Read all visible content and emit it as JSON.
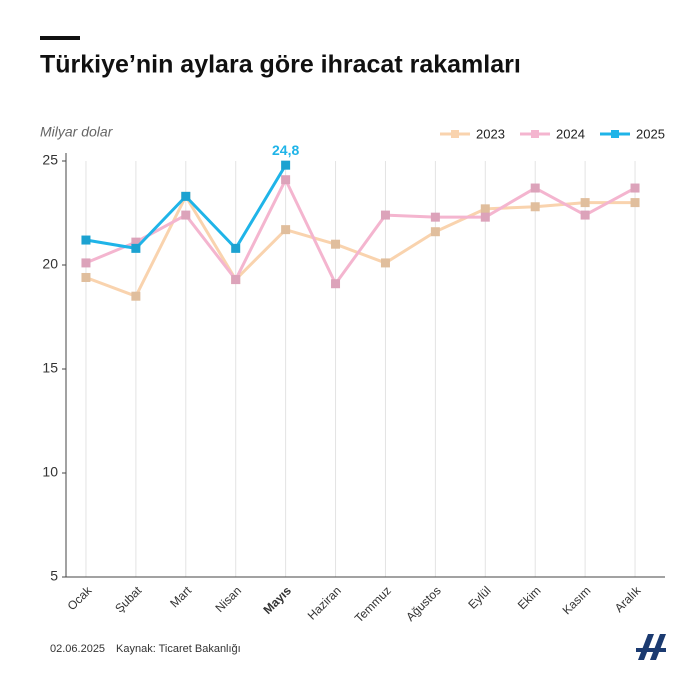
{
  "chart_data": {
    "type": "line",
    "title": "Türkiye’nin aylara göre ihracat rakamları",
    "y_label": "Milyar dolar",
    "categories": [
      "Ocak",
      "Şubat",
      "Mart",
      "Nisan",
      "Mayıs",
      "Haziran",
      "Temmuz",
      "Ağustos",
      "Eylül",
      "Ekim",
      "Kasım",
      "Aralık"
    ],
    "highlight": "Mayıs",
    "series": [
      {
        "name": "2023",
        "color": "#f9d3ae",
        "values": [
          19.4,
          18.5,
          23.3,
          19.3,
          21.7,
          21.0,
          20.1,
          21.6,
          22.7,
          22.8,
          23.0,
          23.0
        ]
      },
      {
        "name": "2024",
        "color": "#f4b5cf",
        "values": [
          20.1,
          21.1,
          22.4,
          19.3,
          24.1,
          19.1,
          22.4,
          22.3,
          22.3,
          23.7,
          22.4,
          23.7
        ]
      },
      {
        "name": "2025",
        "color": "#1fb4e8",
        "values": [
          21.2,
          20.8,
          23.3,
          20.8,
          24.8,
          null,
          null,
          null,
          null,
          null,
          null,
          null
        ],
        "value_labels": [
          null,
          null,
          null,
          null,
          "24,8",
          null,
          null,
          null,
          null,
          null,
          null,
          null
        ]
      }
    ],
    "ylim": [
      5,
      25
    ],
    "yticks": [
      5,
      10,
      15,
      20,
      25
    ],
    "legend": "top-right",
    "date": "02.06.2025",
    "source": "Kaynak: Ticaret Bakanlığı"
  }
}
